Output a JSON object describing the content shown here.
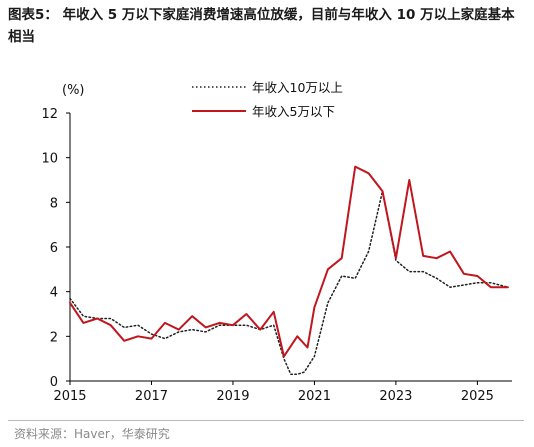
{
  "title": "图表5：  年收入 5 万以下家庭消费增速高位放缓，目前与年收入 10 万以上家庭基本相当",
  "source": "资料来源：Haver，华泰研究",
  "colors": {
    "series_above": "#222222",
    "series_below": "#c0161d",
    "axis": "#000000"
  },
  "chart_data": {
    "type": "line",
    "ylabel": "(%)",
    "ylim": [
      0,
      12
    ],
    "xlim": [
      2015.0,
      2025.85
    ],
    "yticks": [
      0,
      2,
      4,
      6,
      8,
      10,
      12
    ],
    "xticks": [
      2015,
      2017,
      2019,
      2021,
      2023,
      2025
    ],
    "legend_position": "top",
    "grid": false,
    "series": [
      {
        "name": "年收入10万以上",
        "style": "dotted",
        "color": "#222222",
        "x": [
          2015.0,
          2015.33,
          2015.67,
          2016.0,
          2016.33,
          2016.67,
          2017.0,
          2017.33,
          2017.67,
          2018.0,
          2018.33,
          2018.67,
          2019.0,
          2019.33,
          2019.67,
          2020.0,
          2020.25,
          2020.42,
          2020.58,
          2020.75,
          2021.0,
          2021.33,
          2021.67,
          2022.0,
          2022.33,
          2022.67,
          2023.0,
          2023.33,
          2023.67,
          2024.0,
          2024.33,
          2024.67,
          2025.0,
          2025.33,
          2025.75
        ],
        "y": [
          3.7,
          2.9,
          2.8,
          2.8,
          2.4,
          2.5,
          2.1,
          1.9,
          2.2,
          2.3,
          2.2,
          2.5,
          2.5,
          2.5,
          2.3,
          2.5,
          1.0,
          0.3,
          0.3,
          0.4,
          1.1,
          3.5,
          4.7,
          4.6,
          5.8,
          8.5,
          5.4,
          4.9,
          4.9,
          4.6,
          4.2,
          4.3,
          4.4,
          4.4,
          4.2
        ]
      },
      {
        "name": "年收入5万以下",
        "style": "solid",
        "color": "#c0161d",
        "x": [
          2015.0,
          2015.33,
          2015.67,
          2016.0,
          2016.33,
          2016.67,
          2017.0,
          2017.33,
          2017.67,
          2018.0,
          2018.33,
          2018.67,
          2019.0,
          2019.33,
          2019.67,
          2020.0,
          2020.25,
          2020.58,
          2020.83,
          2021.0,
          2021.33,
          2021.67,
          2022.0,
          2022.33,
          2022.67,
          2023.0,
          2023.33,
          2023.67,
          2024.0,
          2024.33,
          2024.67,
          2025.0,
          2025.33,
          2025.75
        ],
        "y": [
          3.5,
          2.6,
          2.8,
          2.5,
          1.8,
          2.0,
          1.9,
          2.6,
          2.3,
          2.9,
          2.4,
          2.6,
          2.5,
          3.0,
          2.3,
          3.1,
          1.1,
          2.0,
          1.5,
          3.3,
          5.0,
          5.5,
          9.6,
          9.3,
          8.5,
          5.5,
          9.0,
          5.6,
          5.5,
          5.8,
          4.8,
          4.7,
          4.2,
          4.2
        ]
      }
    ]
  }
}
